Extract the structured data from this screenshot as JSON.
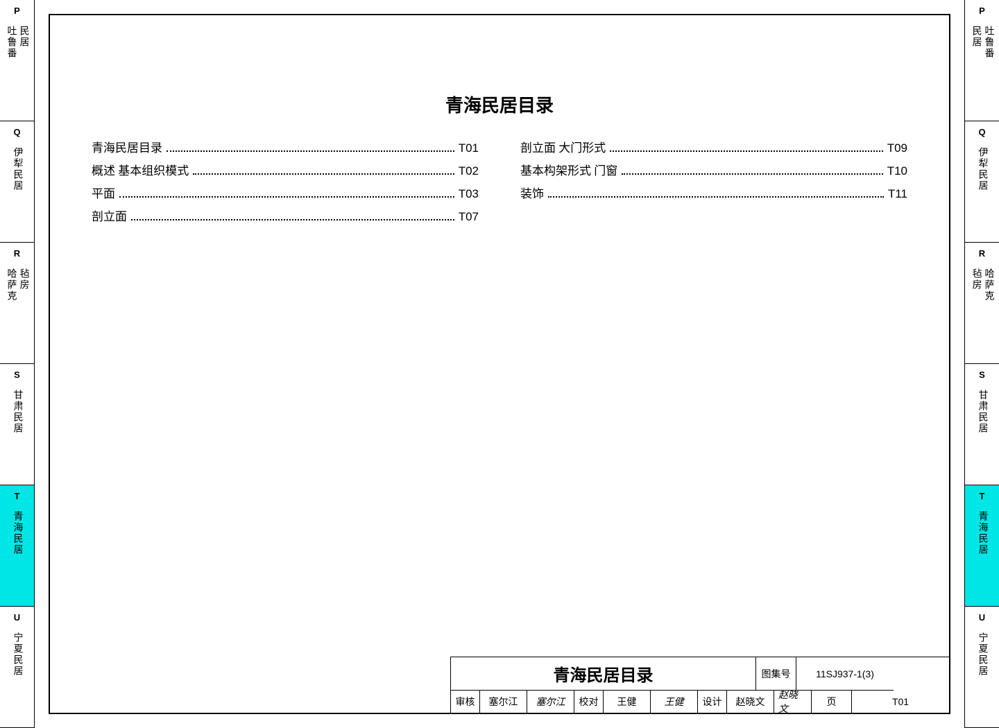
{
  "tabs": [
    {
      "letter": "P",
      "texts": [
        "吐鲁番",
        "民居"
      ],
      "active": false
    },
    {
      "letter": "Q",
      "texts": [
        "伊犁民居"
      ],
      "active": false
    },
    {
      "letter": "R",
      "texts": [
        "哈萨克",
        "毡房"
      ],
      "active": false
    },
    {
      "letter": "S",
      "texts": [
        "甘肃民居"
      ],
      "active": false
    },
    {
      "letter": "T",
      "texts": [
        "青海民居"
      ],
      "active": true
    },
    {
      "letter": "U",
      "texts": [
        "宁夏民居"
      ],
      "active": false
    }
  ],
  "tabs_right": [
    {
      "letter": "P",
      "texts": [
        "民居",
        "吐鲁番"
      ],
      "active": false
    },
    {
      "letter": "Q",
      "texts": [
        "伊犁民居"
      ],
      "active": false
    },
    {
      "letter": "R",
      "texts": [
        "毡房",
        "哈萨克"
      ],
      "active": false
    },
    {
      "letter": "S",
      "texts": [
        "甘肃民居"
      ],
      "active": false
    },
    {
      "letter": "T",
      "texts": [
        "青海民居"
      ],
      "active": true
    },
    {
      "letter": "U",
      "texts": [
        "宁夏民居"
      ],
      "active": false
    }
  ],
  "title": "青海民居目录",
  "toc_left": [
    {
      "label": "青海民居目录",
      "page": "T01"
    },
    {
      "label": "概述  基本组织模式",
      "page": "T02"
    },
    {
      "label": "平面",
      "page": "T03"
    },
    {
      "label": "剖立面",
      "page": "T07"
    }
  ],
  "toc_right": [
    {
      "label": "剖立面  大门形式",
      "page": "T09"
    },
    {
      "label": "基本构架形式  门窗",
      "page": "T10"
    },
    {
      "label": "装饰",
      "page": "T11"
    }
  ],
  "title_block": {
    "drawing_title": "青海民居目录",
    "album_label": "图集号",
    "album_value": "11SJ937-1(3)",
    "page_label": "页",
    "page_value": "T01",
    "review_label": "审核",
    "review_name": "塞尔江",
    "review_sig": "塞尔江",
    "check_label": "校对",
    "check_name": "王健",
    "check_sig": "王健",
    "design_label": "设计",
    "design_name": "赵晓文",
    "design_sig": "赵晓文"
  },
  "colors": {
    "active_tab": "#00e5e5",
    "border": "#000000",
    "background": "#ffffff"
  }
}
